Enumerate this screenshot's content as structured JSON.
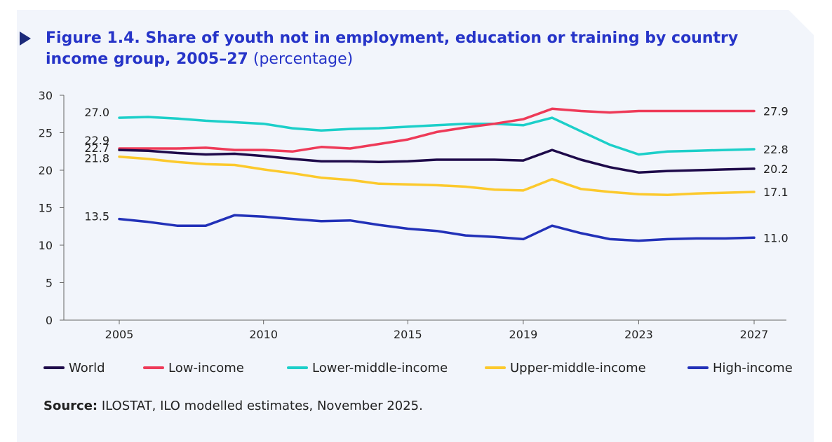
{
  "header": {
    "title_bold": "Figure 1.4. Share of youth not in employment, education or training by country income group, 2005–27",
    "title_suffix": "(percentage)"
  },
  "source": {
    "label": "Source:",
    "text": "ILOSTAT, ILO modelled estimates, November 2025."
  },
  "colors": {
    "World": "#1e0a4a",
    "Low-income": "#ee3a58",
    "Lower-middle-income": "#1ccfc9",
    "Upper-middle-income": "#fcc92c",
    "High-income": "#2231b8"
  },
  "chart_data": {
    "type": "line",
    "title": "Figure 1.4. Share of youth not in employment, education or training by country income group, 2005–27 (percentage)",
    "xlabel": "",
    "ylabel": "",
    "x": [
      2005,
      2006,
      2007,
      2008,
      2009,
      2010,
      2011,
      2012,
      2013,
      2014,
      2015,
      2016,
      2017,
      2018,
      2019,
      2020,
      2021,
      2022,
      2023,
      2024,
      2025,
      2026,
      2027
    ],
    "x_ticks": [
      "2005",
      "2010",
      "2015",
      "2019",
      "2023",
      "2027"
    ],
    "x_tick_values": [
      2005,
      2010,
      2015,
      2019,
      2023,
      2027
    ],
    "ylim": [
      0,
      30
    ],
    "y_ticks": [
      0,
      5,
      10,
      15,
      20,
      25,
      30
    ],
    "series": [
      {
        "name": "World",
        "values": [
          22.7,
          22.6,
          22.3,
          22.1,
          22.2,
          21.9,
          21.5,
          21.2,
          21.2,
          21.1,
          21.2,
          21.4,
          21.4,
          21.4,
          21.3,
          22.7,
          21.4,
          20.4,
          19.7,
          19.9,
          20.0,
          20.1,
          20.2
        ],
        "start_label": "22.7",
        "end_label": "20.2"
      },
      {
        "name": "Low-income",
        "values": [
          22.9,
          22.9,
          22.9,
          23.0,
          22.7,
          22.7,
          22.5,
          23.1,
          22.9,
          23.5,
          24.1,
          25.1,
          25.7,
          26.2,
          26.8,
          28.2,
          27.9,
          27.7,
          27.9,
          27.9,
          27.9,
          27.9,
          27.9
        ],
        "start_label": "22.9",
        "end_label": "27.9"
      },
      {
        "name": "Lower-middle-income",
        "values": [
          27.0,
          27.1,
          26.9,
          26.6,
          26.4,
          26.2,
          25.6,
          25.3,
          25.5,
          25.6,
          25.8,
          26.0,
          26.2,
          26.2,
          26.0,
          27.0,
          25.2,
          23.4,
          22.1,
          22.5,
          22.6,
          22.7,
          22.8
        ],
        "start_label": "27.0",
        "end_label": "22.8"
      },
      {
        "name": "Upper-middle-income",
        "values": [
          21.8,
          21.5,
          21.1,
          20.8,
          20.7,
          20.1,
          19.6,
          19.0,
          18.7,
          18.2,
          18.1,
          18.0,
          17.8,
          17.4,
          17.3,
          18.8,
          17.5,
          17.1,
          16.8,
          16.7,
          16.9,
          17.0,
          17.1
        ],
        "start_label": "21.8",
        "end_label": "17.1"
      },
      {
        "name": "High-income",
        "values": [
          13.5,
          13.1,
          12.6,
          12.6,
          14.0,
          13.8,
          13.5,
          13.2,
          13.3,
          12.7,
          12.2,
          11.9,
          11.3,
          11.1,
          10.8,
          12.6,
          11.6,
          10.8,
          10.6,
          10.8,
          10.9,
          10.9,
          11.0
        ],
        "start_label": "13.5",
        "end_label": "11.0"
      }
    ],
    "grid": false,
    "legend_position": "bottom"
  }
}
